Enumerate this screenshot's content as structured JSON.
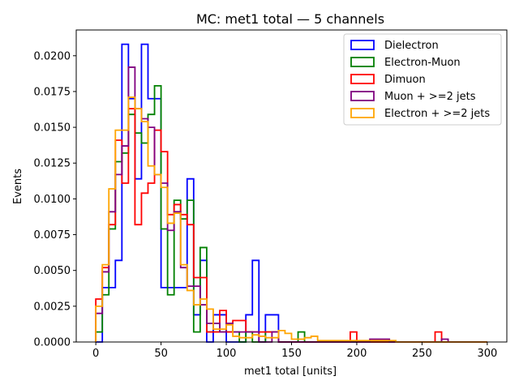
{
  "chart_data": {
    "type": "histogram-step",
    "title": "MC: met1 total — 5 channels",
    "xlabel": "met1 total [units]",
    "ylabel": "Events",
    "xlim": [
      -15,
      315
    ],
    "ylim": [
      0,
      0.0218
    ],
    "bin_width": 5,
    "bin_start": 0,
    "grid": false,
    "legend_position": "upper-right",
    "x_ticks": [
      0,
      50,
      100,
      150,
      200,
      250,
      300
    ],
    "x_tick_labels": [
      "0",
      "50",
      "100",
      "150",
      "200",
      "250",
      "300"
    ],
    "y_ticks": [
      0,
      0.0025,
      0.005,
      0.0075,
      0.01,
      0.0125,
      0.015,
      0.0175,
      0.02
    ],
    "y_tick_labels": [
      "0.0000",
      "0.0025",
      "0.0050",
      "0.0075",
      "0.0100",
      "0.0125",
      "0.0150",
      "0.0175",
      "0.0200"
    ],
    "series": [
      {
        "name": "Dielectron",
        "color": "#0000ff",
        "values": [
          0,
          0.0038,
          0.0038,
          0.0057,
          0.0208,
          0.017,
          0.0114,
          0.0208,
          0.017,
          0.017,
          0.0038,
          0.0038,
          0.0038,
          0.0038,
          0.0114,
          0.0019,
          0.0057,
          0,
          0.0019,
          0.0019,
          0,
          0,
          0,
          0.0019,
          0.0057,
          0,
          0.0019,
          0.0019,
          0,
          0,
          0,
          0,
          0,
          0,
          0,
          0,
          0,
          0,
          0,
          0,
          0,
          0,
          0,
          0,
          0,
          0,
          0,
          0,
          0,
          0,
          0,
          0,
          0,
          0,
          0,
          0,
          0,
          0,
          0,
          0
        ]
      },
      {
        "name": "Electron-Muon",
        "color": "#008000",
        "values": [
          0.0007,
          0.0033,
          0.0079,
          0.0126,
          0.0132,
          0.0159,
          0.0146,
          0.0139,
          0.0159,
          0.0179,
          0.0079,
          0.0033,
          0.0099,
          0.0086,
          0.0099,
          0.0007,
          0.0066,
          0.0007,
          0.0007,
          0.0007,
          0.0007,
          0.0007,
          0,
          0.0007,
          0,
          0,
          0.0007,
          0.0007,
          0,
          0,
          0,
          0.0007,
          0,
          0,
          0,
          0,
          0,
          0,
          0,
          0,
          0,
          0,
          0,
          0,
          0,
          0,
          0,
          0,
          0,
          0,
          0,
          0,
          0,
          0,
          0,
          0,
          0,
          0,
          0,
          0
        ]
      },
      {
        "name": "Dimuon",
        "color": "#ff0000",
        "values": [
          0.003,
          0.0052,
          0.0082,
          0.0141,
          0.0111,
          0.0163,
          0.0082,
          0.0104,
          0.0111,
          0.0148,
          0.0133,
          0.0089,
          0.0096,
          0.0089,
          0.0082,
          0.0045,
          0.0045,
          0.0007,
          0.0007,
          0.0022,
          0.0007,
          0.0015,
          0.0015,
          0.0007,
          0.0007,
          0.0007,
          0.0007,
          0.0007,
          0,
          0,
          0,
          0,
          0,
          0,
          0,
          0,
          0,
          0,
          0,
          0.0007,
          0,
          0,
          0,
          0,
          0,
          0,
          0,
          0,
          0,
          0,
          0,
          0,
          0.0007,
          0,
          0,
          0,
          0,
          0,
          0,
          0
        ]
      },
      {
        "name": "Muon + >=2 jets",
        "color": "#800080",
        "values": [
          0.002,
          0.0049,
          0.0091,
          0.0117,
          0.0137,
          0.0192,
          0.0163,
          0.0156,
          0.015,
          0.0117,
          0.0111,
          0.0078,
          0.0091,
          0.0052,
          0.0039,
          0.0039,
          0.0026,
          0.0013,
          0.0013,
          0.0007,
          0.0013,
          0.0007,
          0.0007,
          0.0007,
          0.0007,
          0,
          0,
          0.0007,
          0,
          0,
          0,
          0,
          0,
          0,
          0,
          0,
          0,
          0,
          0,
          0,
          0,
          0,
          0.0002,
          0.0002,
          0.0002,
          0,
          0,
          0,
          0,
          0,
          0,
          0,
          0,
          0.0002,
          0,
          0,
          0,
          0,
          0,
          0
        ]
      },
      {
        "name": "Electron + >=2 jets",
        "color": "#ffa500",
        "values": [
          0.0025,
          0.0054,
          0.0107,
          0.0148,
          0.0148,
          0.0171,
          0.0163,
          0.0154,
          0.0123,
          0.0117,
          0.0108,
          0.0083,
          0.009,
          0.0054,
          0.0036,
          0.0026,
          0.003,
          0.0023,
          0.0009,
          0.0009,
          0.0012,
          0.0004,
          0.0003,
          0.0003,
          0.0005,
          0.0004,
          0.0003,
          0.0003,
          0.0008,
          0.0006,
          0.0002,
          0.0002,
          0.0003,
          0.0004,
          0.0001,
          0.0001,
          0.0001,
          0.0001,
          0.0001,
          0.0001,
          0.0001,
          0.0001,
          0.0001,
          0.0001,
          0.0001,
          0.0001,
          0,
          0,
          0,
          0,
          0,
          0,
          0,
          0,
          0,
          0,
          0,
          0,
          0,
          0
        ]
      }
    ]
  }
}
